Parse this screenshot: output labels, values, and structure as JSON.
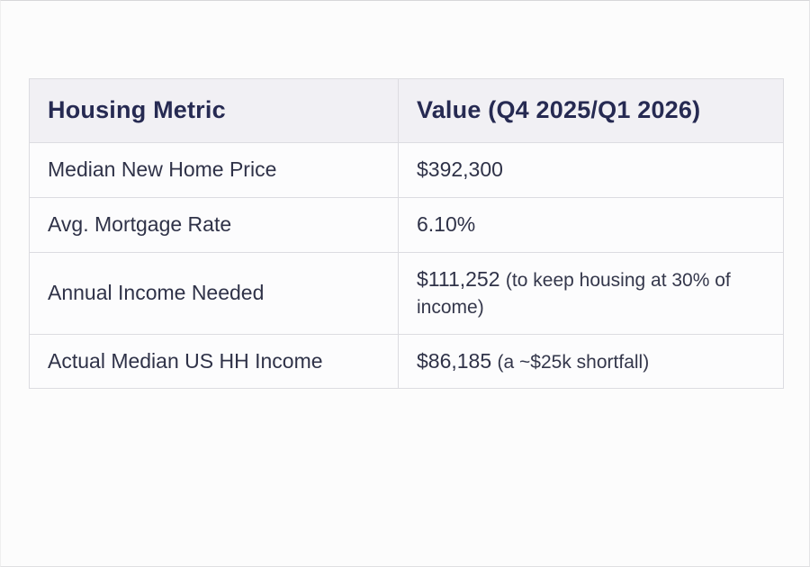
{
  "table": {
    "columns": [
      {
        "label": "Housing Metric"
      },
      {
        "label": "Value (Q4 2025/Q1 2026)"
      }
    ],
    "rows": [
      {
        "metric": "Median New Home Price",
        "value_main": "$392,300",
        "value_note": ""
      },
      {
        "metric": "Avg. Mortgage Rate",
        "value_main": "6.10%",
        "value_note": ""
      },
      {
        "metric": "Annual Income Needed",
        "value_main": "$111,252",
        "value_note": "(to keep housing at 30% of income)"
      },
      {
        "metric": "Actual Median US HH Income",
        "value_main": "$86,185",
        "value_note": "(a ~$25k shortfall)"
      }
    ],
    "colors": {
      "header_background": "#f1f0f4",
      "header_text": "#262a52",
      "body_text": "#2f3248",
      "row_background": "#fcfcfd",
      "border": "#dcdce1",
      "canvas_background": "#fcfcfc"
    }
  },
  "chart_data": {
    "type": "table",
    "title": "",
    "columns": [
      "Housing Metric",
      "Value (Q4 2025/Q1 2026)"
    ],
    "rows": [
      [
        "Median New Home Price",
        "$392,300"
      ],
      [
        "Avg. Mortgage Rate",
        "6.10%"
      ],
      [
        "Annual Income Needed",
        "$111,252 (to keep housing at 30% of income)"
      ],
      [
        "Actual Median US HH Income",
        "$86,185 (a ~$25k shortfall)"
      ]
    ]
  }
}
